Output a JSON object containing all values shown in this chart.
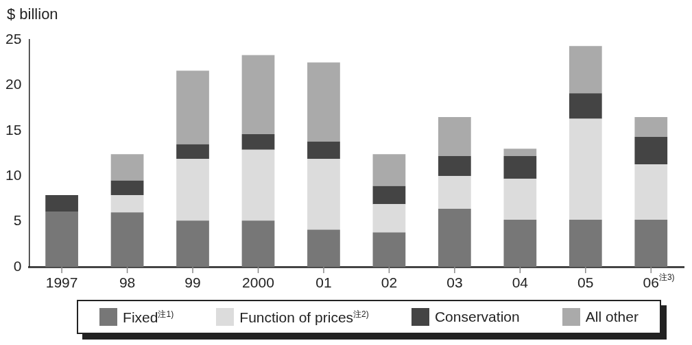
{
  "chart_data": {
    "type": "bar",
    "stacked": true,
    "ylabel": "$ billion",
    "categories": [
      "1997",
      "98",
      "99",
      "2000",
      "01",
      "02",
      "03",
      "04",
      "05",
      "06$^{注3)}$"
    ],
    "series": [
      {
        "name": "Fixed$^{注1)}$",
        "color": "#777777",
        "values": [
          6.1,
          6.0,
          5.1,
          5.1,
          4.1,
          3.8,
          6.4,
          5.2,
          5.2,
          5.2
        ]
      },
      {
        "name": "Function of prices$^{注2)}$",
        "color": "#dcdcdc",
        "values": [
          0,
          1.9,
          6.8,
          7.8,
          7.8,
          3.1,
          3.6,
          4.5,
          11.1,
          6.1
        ]
      },
      {
        "name": "Conservation",
        "color": "#444444",
        "values": [
          1.8,
          1.6,
          1.6,
          1.7,
          1.9,
          2.0,
          2.2,
          2.5,
          2.8,
          3.0
        ]
      },
      {
        "name": "All other",
        "color": "#aaaaaa",
        "values": [
          0,
          2.9,
          8.1,
          8.7,
          8.7,
          3.5,
          4.3,
          0.8,
          5.2,
          2.2
        ]
      }
    ],
    "ylim": [
      0,
      25
    ],
    "yticks": [
      0,
      5,
      10,
      15,
      20,
      25
    ],
    "grid": false,
    "legend": "bottom"
  }
}
